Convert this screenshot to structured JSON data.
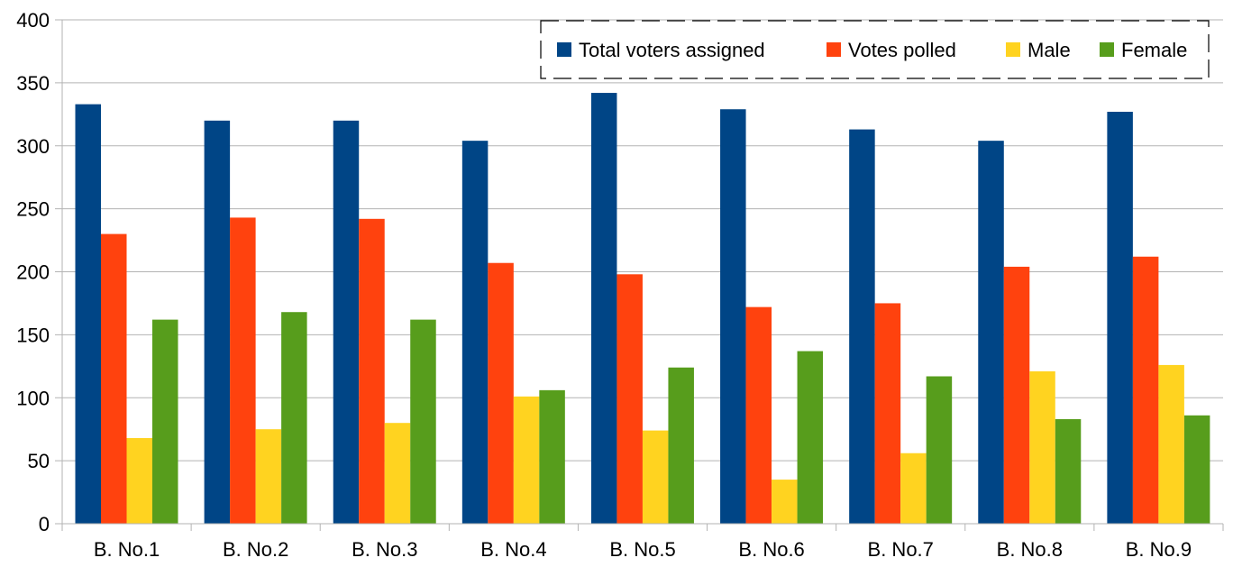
{
  "chart_data": {
    "type": "bar",
    "categories": [
      "B. No.1",
      "B. No.2",
      "B. No.3",
      "B. No.4",
      "B. No.5",
      "B. No.6",
      "B. No.7",
      "B. No.8",
      "B. No.9"
    ],
    "series": [
      {
        "name": "Total voters assigned",
        "color": "#004586",
        "values": [
          333,
          320,
          320,
          304,
          342,
          329,
          313,
          304,
          327
        ]
      },
      {
        "name": "Votes polled",
        "color": "#ff420e",
        "values": [
          230,
          243,
          242,
          207,
          198,
          172,
          175,
          204,
          212
        ]
      },
      {
        "name": "Male",
        "color": "#ffd320",
        "values": [
          68,
          75,
          80,
          101,
          74,
          35,
          56,
          121,
          126
        ]
      },
      {
        "name": "Female",
        "color": "#579d1c",
        "values": [
          162,
          168,
          162,
          106,
          124,
          137,
          117,
          83,
          86
        ]
      }
    ],
    "ylim": [
      0,
      400
    ],
    "yticks": [
      0,
      50,
      100,
      150,
      200,
      250,
      300,
      350,
      400
    ],
    "grid": true,
    "legend_position": "top-right",
    "title": "",
    "xlabel": "",
    "ylabel": ""
  }
}
